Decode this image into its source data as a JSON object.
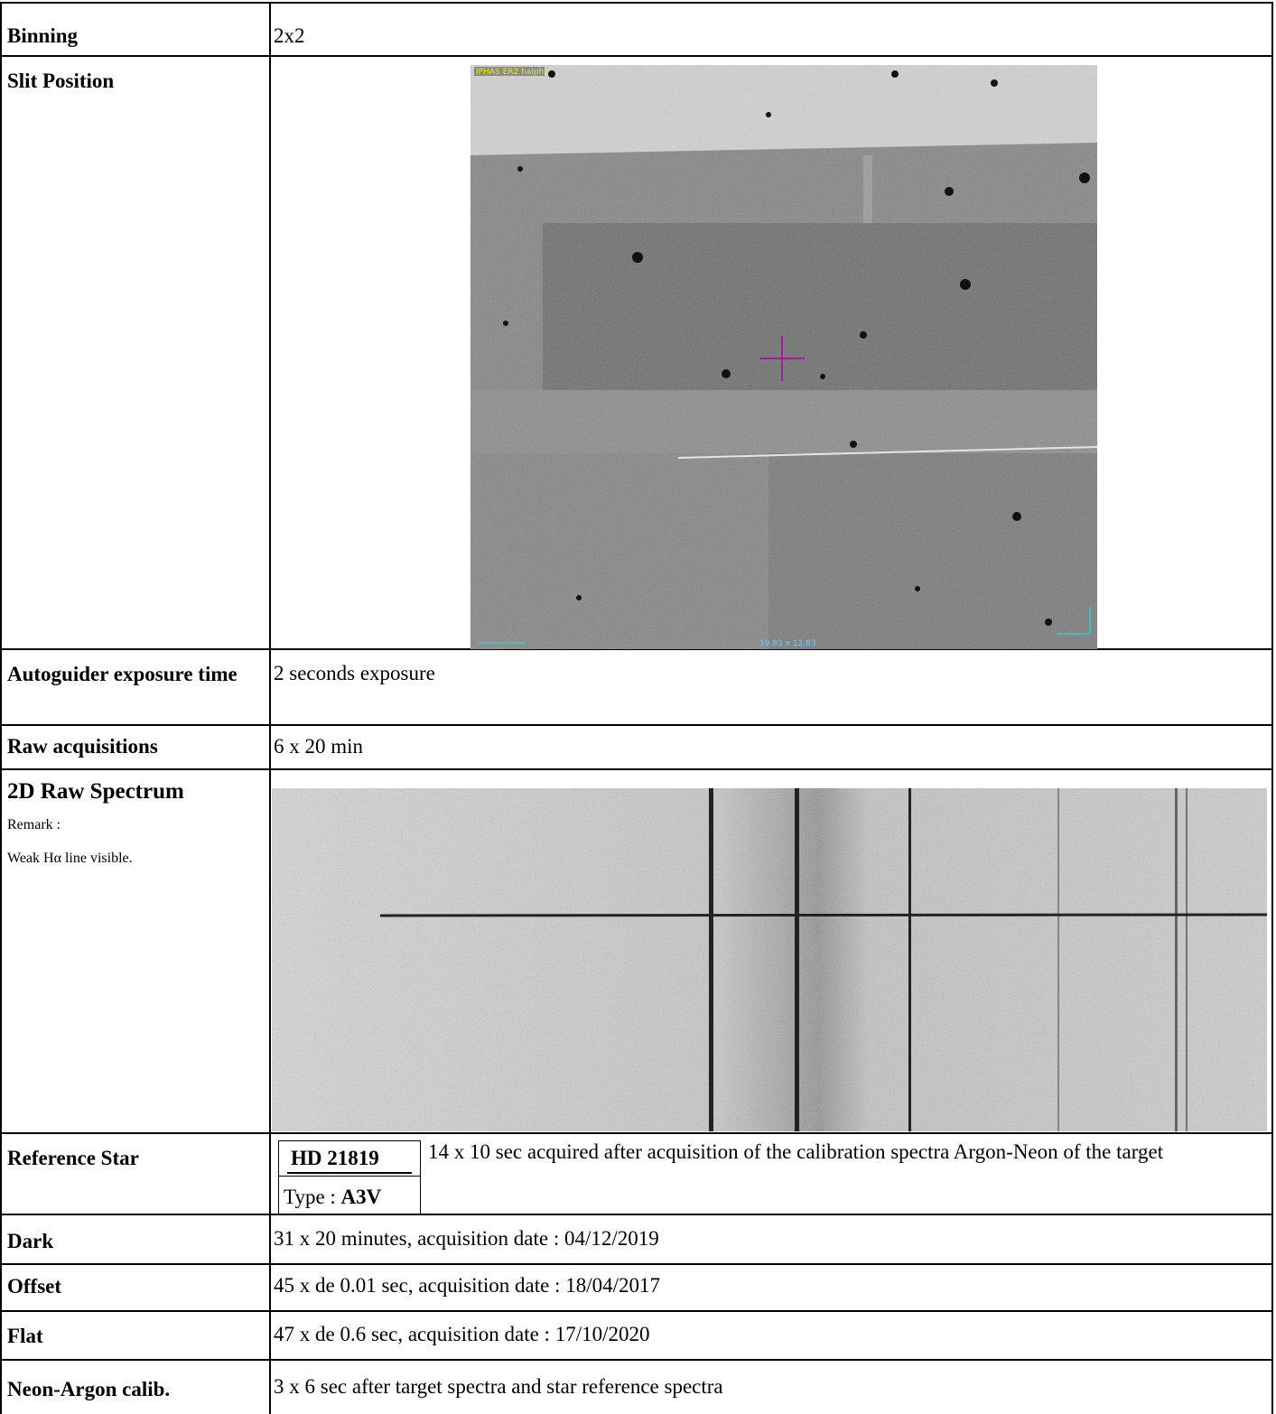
{
  "rows": [
    {
      "label": "Binning",
      "text": "2x2"
    },
    {
      "label": "Slit Position",
      "image_caption": "IPHAS ER2 halpha",
      "image_scale": "19.83 x 12.83"
    },
    {
      "label": "Autoguider exposure time",
      "text": "2 seconds exposure"
    },
    {
      "label": "Raw acquisitions",
      "text": "6 x 20 min"
    },
    {
      "label": "2D Raw Spectrum",
      "remark_title": "Remark :",
      "remark": "Weak Hα line visible."
    },
    {
      "label": "Reference Star",
      "star": "HD 21819",
      "type_label": "Type :",
      "type_value": "A3V",
      "text": "14 x 10 sec acquired after acquisition of the calibration spectra Argon-Neon of the target"
    },
    {
      "label": "Dark",
      "text": "31 x 20 minutes, acquisition date : 04/12/2019"
    },
    {
      "label": "Offset",
      "text": "45 x de 0.01 sec, acquisition date : 18/04/2017"
    },
    {
      "label": "Flat",
      "text": "47 x de 0.6 sec, acquisition date : 17/10/2020"
    },
    {
      "label": "Neon-Argon calib.",
      "text": "3 x 6 sec after target spectra and star reference spectra"
    }
  ]
}
